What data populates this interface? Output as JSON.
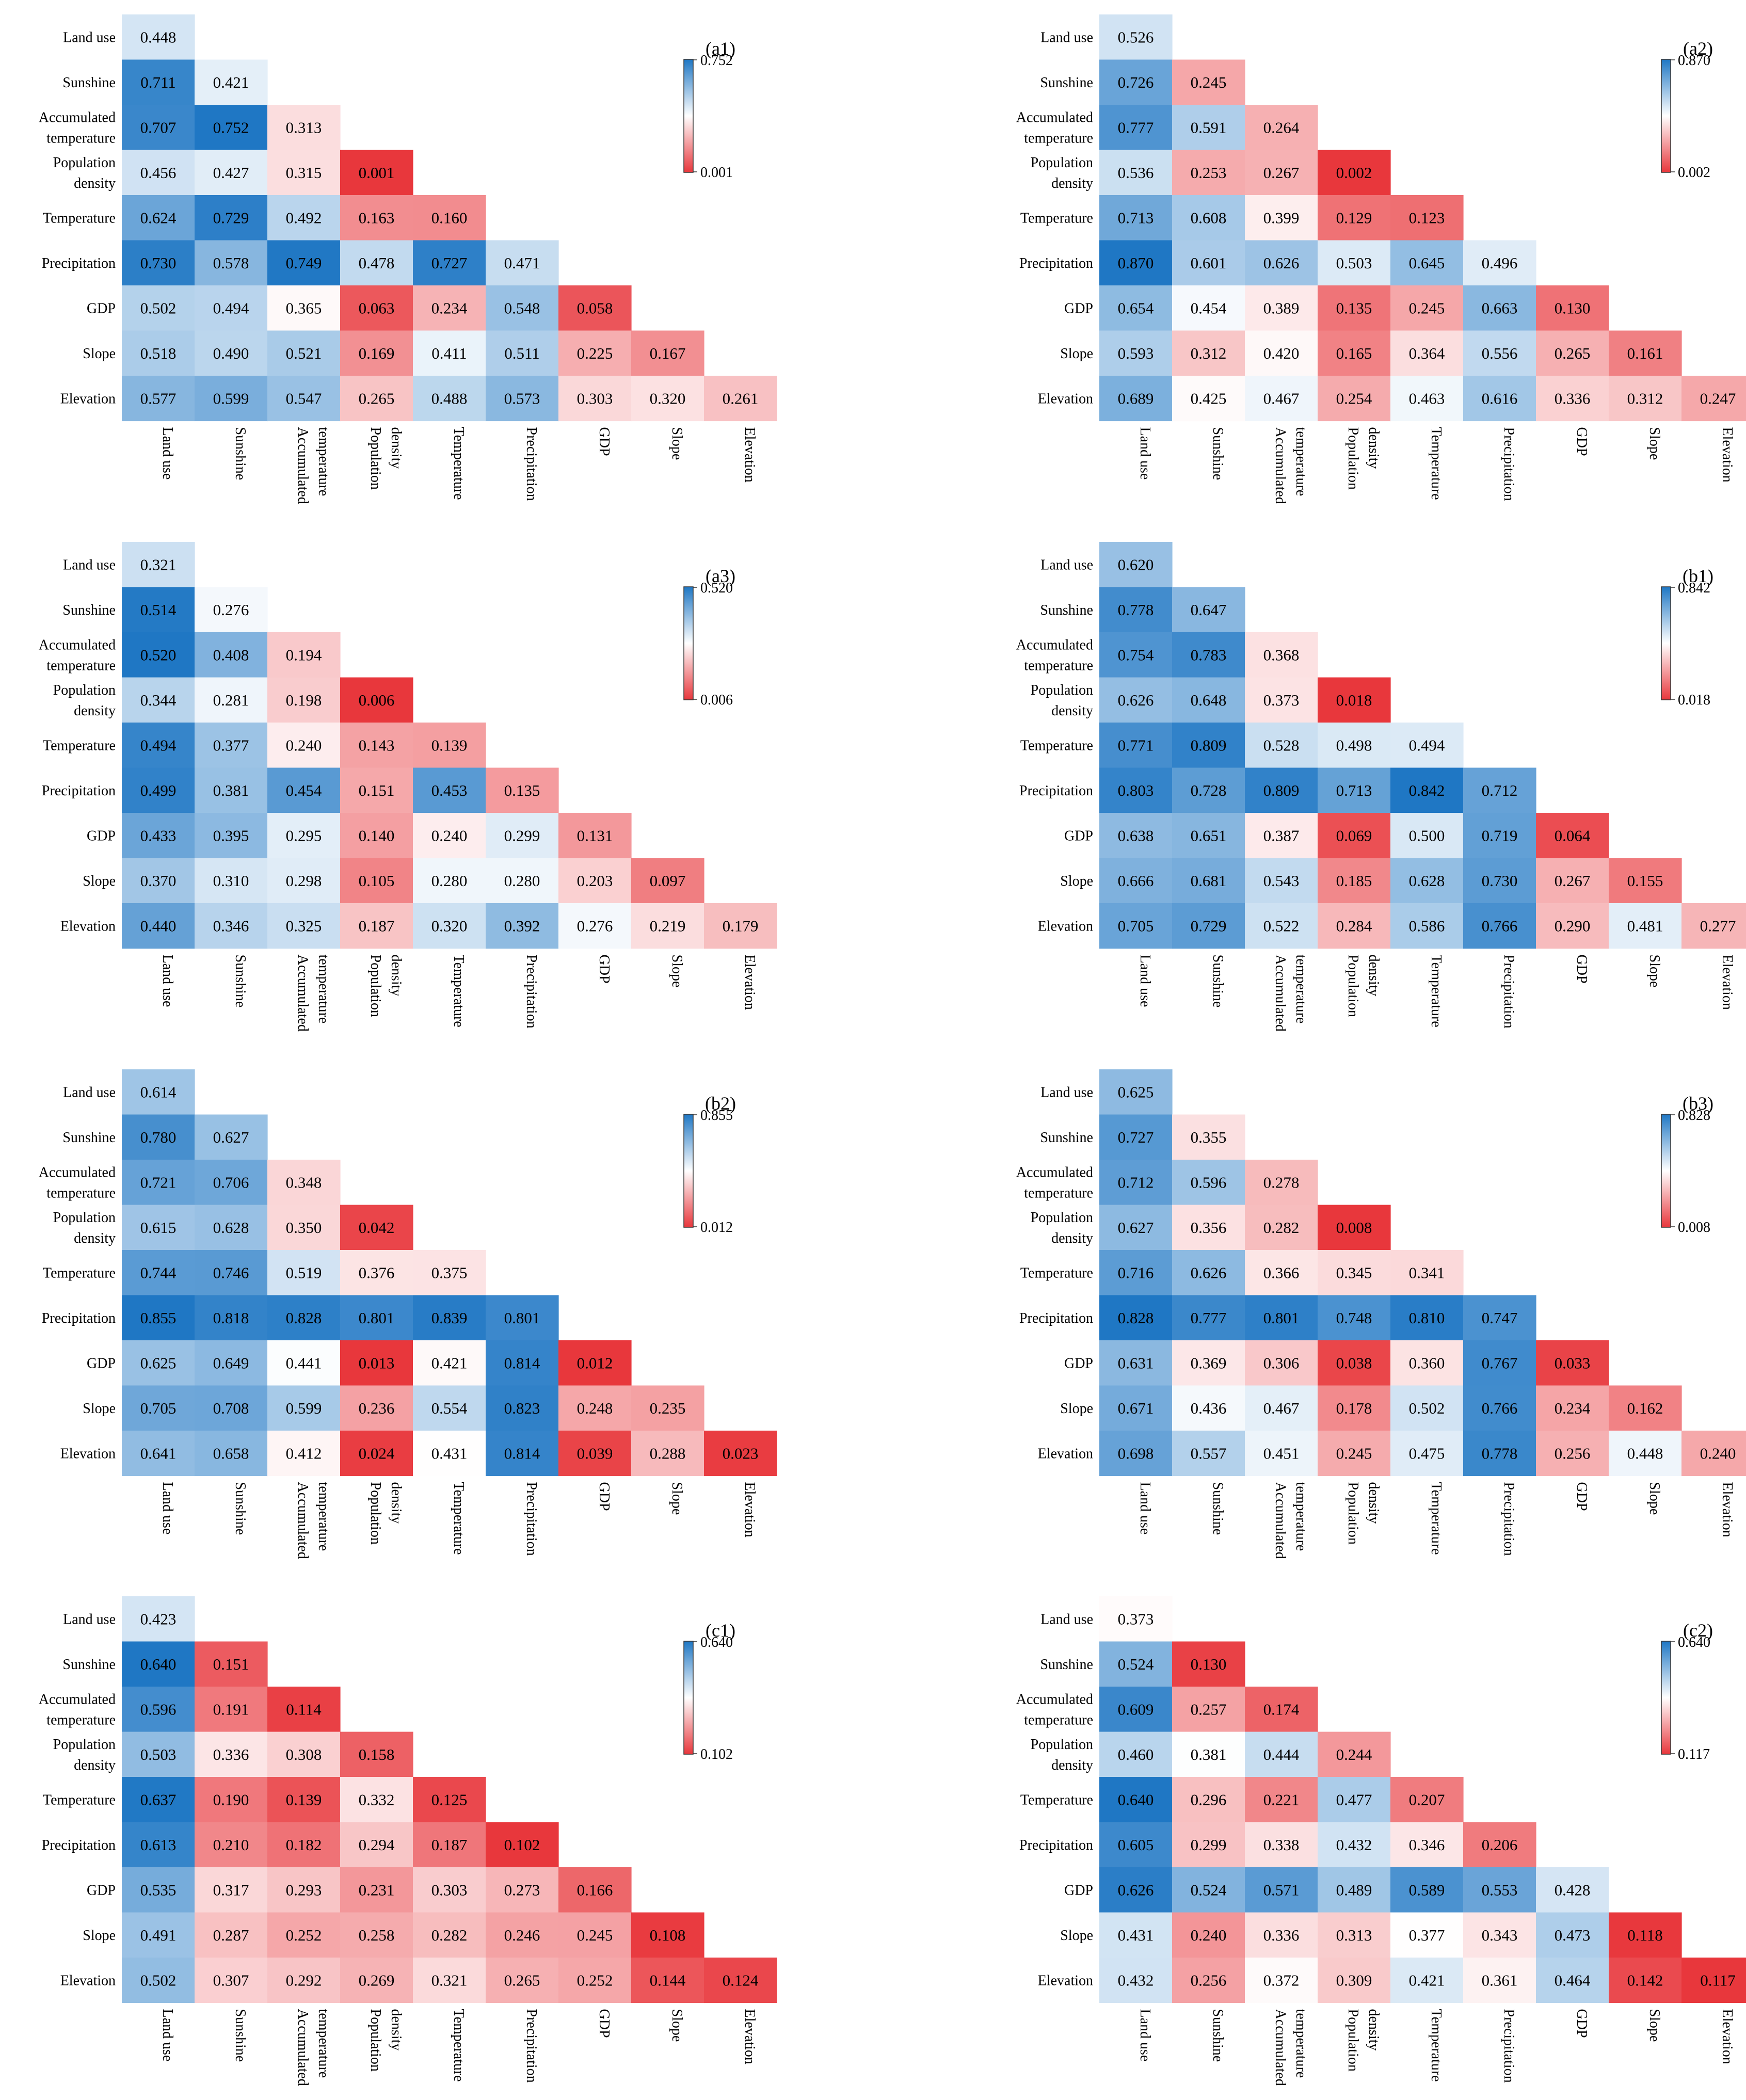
{
  "chart_data": {
    "type": "heatmap",
    "shared": {
      "row_labels": [
        [
          "Land use"
        ],
        [
          "Sunshine"
        ],
        [
          "Accumulated",
          "temperature"
        ],
        [
          "Population",
          "density"
        ],
        [
          "Temperature"
        ],
        [
          "Precipitation"
        ],
        [
          "GDP"
        ],
        [
          "Slope"
        ],
        [
          "Elevation"
        ]
      ],
      "col_labels": [
        [
          "Land use"
        ],
        [
          "Sunshine"
        ],
        [
          "Accumulated",
          "temperature"
        ],
        [
          "Population",
          "density"
        ],
        [
          "Temperature"
        ],
        [
          "Precipitation"
        ],
        [
          "GDP"
        ],
        [
          "Slope"
        ],
        [
          "Elevation"
        ]
      ],
      "colormap": {
        "low": "#e8373c",
        "mid": "#ffffff",
        "high": "#1f77c4"
      },
      "colorbar": "right"
    },
    "panels": [
      {
        "label": "(a1)",
        "vmin": "0.001",
        "vmax": "0.752",
        "values": [
          [
            "0.448"
          ],
          [
            "0.711",
            "0.421"
          ],
          [
            "0.707",
            "0.752",
            "0.313"
          ],
          [
            "0.456",
            "0.427",
            "0.315",
            "0.001"
          ],
          [
            "0.624",
            "0.729",
            "0.492",
            "0.163",
            "0.160"
          ],
          [
            "0.730",
            "0.578",
            "0.749",
            "0.478",
            "0.727",
            "0.471"
          ],
          [
            "0.502",
            "0.494",
            "0.365",
            "0.063",
            "0.234",
            "0.548",
            "0.058"
          ],
          [
            "0.518",
            "0.490",
            "0.521",
            "0.169",
            "0.411",
            "0.511",
            "0.225",
            "0.167"
          ],
          [
            "0.577",
            "0.599",
            "0.547",
            "0.265",
            "0.488",
            "0.573",
            "0.303",
            "0.320",
            "0.261"
          ]
        ]
      },
      {
        "label": "(a2)",
        "vmin": "0.002",
        "vmax": "0.870",
        "values": [
          [
            "0.526"
          ],
          [
            "0.726",
            "0.245"
          ],
          [
            "0.777",
            "0.591",
            "0.264"
          ],
          [
            "0.536",
            "0.253",
            "0.267",
            "0.002"
          ],
          [
            "0.713",
            "0.608",
            "0.399",
            "0.129",
            "0.123"
          ],
          [
            "0.870",
            "0.601",
            "0.626",
            "0.503",
            "0.645",
            "0.496"
          ],
          [
            "0.654",
            "0.454",
            "0.389",
            "0.135",
            "0.245",
            "0.663",
            "0.130"
          ],
          [
            "0.593",
            "0.312",
            "0.420",
            "0.165",
            "0.364",
            "0.556",
            "0.265",
            "0.161"
          ],
          [
            "0.689",
            "0.425",
            "0.467",
            "0.254",
            "0.463",
            "0.616",
            "0.336",
            "0.312",
            "0.247"
          ]
        ]
      },
      {
        "label": "(a3)",
        "vmin": "0.006",
        "vmax": "0.520",
        "values": [
          [
            "0.321"
          ],
          [
            "0.514",
            "0.276"
          ],
          [
            "0.520",
            "0.408",
            "0.194"
          ],
          [
            "0.344",
            "0.281",
            "0.198",
            "0.006"
          ],
          [
            "0.494",
            "0.377",
            "0.240",
            "0.143",
            "0.139"
          ],
          [
            "0.499",
            "0.381",
            "0.454",
            "0.151",
            "0.453",
            "0.135"
          ],
          [
            "0.433",
            "0.395",
            "0.295",
            "0.140",
            "0.240",
            "0.299",
            "0.131"
          ],
          [
            "0.370",
            "0.310",
            "0.298",
            "0.105",
            "0.280",
            "0.280",
            "0.203",
            "0.097"
          ],
          [
            "0.440",
            "0.346",
            "0.325",
            "0.187",
            "0.320",
            "0.392",
            "0.276",
            "0.219",
            "0.179"
          ]
        ]
      },
      {
        "label": "(b1)",
        "vmin": "0.018",
        "vmax": "0.842",
        "values": [
          [
            "0.620"
          ],
          [
            "0.778",
            "0.647"
          ],
          [
            "0.754",
            "0.783",
            "0.368"
          ],
          [
            "0.626",
            "0.648",
            "0.373",
            "0.018"
          ],
          [
            "0.771",
            "0.809",
            "0.528",
            "0.498",
            "0.494"
          ],
          [
            "0.803",
            "0.728",
            "0.809",
            "0.713",
            "0.842",
            "0.712"
          ],
          [
            "0.638",
            "0.651",
            "0.387",
            "0.069",
            "0.500",
            "0.719",
            "0.064"
          ],
          [
            "0.666",
            "0.681",
            "0.543",
            "0.185",
            "0.628",
            "0.730",
            "0.267",
            "0.155"
          ],
          [
            "0.705",
            "0.729",
            "0.522",
            "0.284",
            "0.586",
            "0.766",
            "0.290",
            "0.481",
            "0.277"
          ]
        ]
      },
      {
        "label": "(b2)",
        "vmin": "0.012",
        "vmax": "0.855",
        "values": [
          [
            "0.614"
          ],
          [
            "0.780",
            "0.627"
          ],
          [
            "0.721",
            "0.706",
            "0.348"
          ],
          [
            "0.615",
            "0.628",
            "0.350",
            "0.042"
          ],
          [
            "0.744",
            "0.746",
            "0.519",
            "0.376",
            "0.375"
          ],
          [
            "0.855",
            "0.818",
            "0.828",
            "0.801",
            "0.839",
            "0.801"
          ],
          [
            "0.625",
            "0.649",
            "0.441",
            "0.013",
            "0.421",
            "0.814",
            "0.012"
          ],
          [
            "0.705",
            "0.708",
            "0.599",
            "0.236",
            "0.554",
            "0.823",
            "0.248",
            "0.235"
          ],
          [
            "0.641",
            "0.658",
            "0.412",
            "0.024",
            "0.431",
            "0.814",
            "0.039",
            "0.288",
            "0.023"
          ]
        ]
      },
      {
        "label": "(b3)",
        "vmin": "0.008",
        "vmax": "0.828",
        "values": [
          [
            "0.625"
          ],
          [
            "0.727",
            "0.355"
          ],
          [
            "0.712",
            "0.596",
            "0.278"
          ],
          [
            "0.627",
            "0.356",
            "0.282",
            "0.008"
          ],
          [
            "0.716",
            "0.626",
            "0.366",
            "0.345",
            "0.341"
          ],
          [
            "0.828",
            "0.777",
            "0.801",
            "0.748",
            "0.810",
            "0.747"
          ],
          [
            "0.631",
            "0.369",
            "0.306",
            "0.038",
            "0.360",
            "0.767",
            "0.033"
          ],
          [
            "0.671",
            "0.436",
            "0.467",
            "0.178",
            "0.502",
            "0.766",
            "0.234",
            "0.162"
          ],
          [
            "0.698",
            "0.557",
            "0.451",
            "0.245",
            "0.475",
            "0.778",
            "0.256",
            "0.448",
            "0.240"
          ]
        ]
      },
      {
        "label": "(c1)",
        "vmin": "0.102",
        "vmax": "0.640",
        "values": [
          [
            "0.423"
          ],
          [
            "0.640",
            "0.151"
          ],
          [
            "0.596",
            "0.191",
            "0.114"
          ],
          [
            "0.503",
            "0.336",
            "0.308",
            "0.158"
          ],
          [
            "0.637",
            "0.190",
            "0.139",
            "0.332",
            "0.125"
          ],
          [
            "0.613",
            "0.210",
            "0.182",
            "0.294",
            "0.187",
            "0.102"
          ],
          [
            "0.535",
            "0.317",
            "0.293",
            "0.231",
            "0.303",
            "0.273",
            "0.166"
          ],
          [
            "0.491",
            "0.287",
            "0.252",
            "0.258",
            "0.282",
            "0.246",
            "0.245",
            "0.108"
          ],
          [
            "0.502",
            "0.307",
            "0.292",
            "0.269",
            "0.321",
            "0.265",
            "0.252",
            "0.144",
            "0.124"
          ]
        ]
      },
      {
        "label": "(c2)",
        "vmin": "0.117",
        "vmax": "0.640",
        "values": [
          [
            "0.373"
          ],
          [
            "0.524",
            "0.130"
          ],
          [
            "0.609",
            "0.257",
            "0.174"
          ],
          [
            "0.460",
            "0.381",
            "0.444",
            "0.244"
          ],
          [
            "0.640",
            "0.296",
            "0.221",
            "0.477",
            "0.207"
          ],
          [
            "0.605",
            "0.299",
            "0.338",
            "0.432",
            "0.346",
            "0.206"
          ],
          [
            "0.626",
            "0.524",
            "0.571",
            "0.489",
            "0.589",
            "0.553",
            "0.428"
          ],
          [
            "0.431",
            "0.240",
            "0.336",
            "0.313",
            "0.377",
            "0.343",
            "0.473",
            "0.118"
          ],
          [
            "0.432",
            "0.256",
            "0.372",
            "0.309",
            "0.421",
            "0.361",
            "0.464",
            "0.142",
            "0.117"
          ]
        ]
      }
    ]
  }
}
